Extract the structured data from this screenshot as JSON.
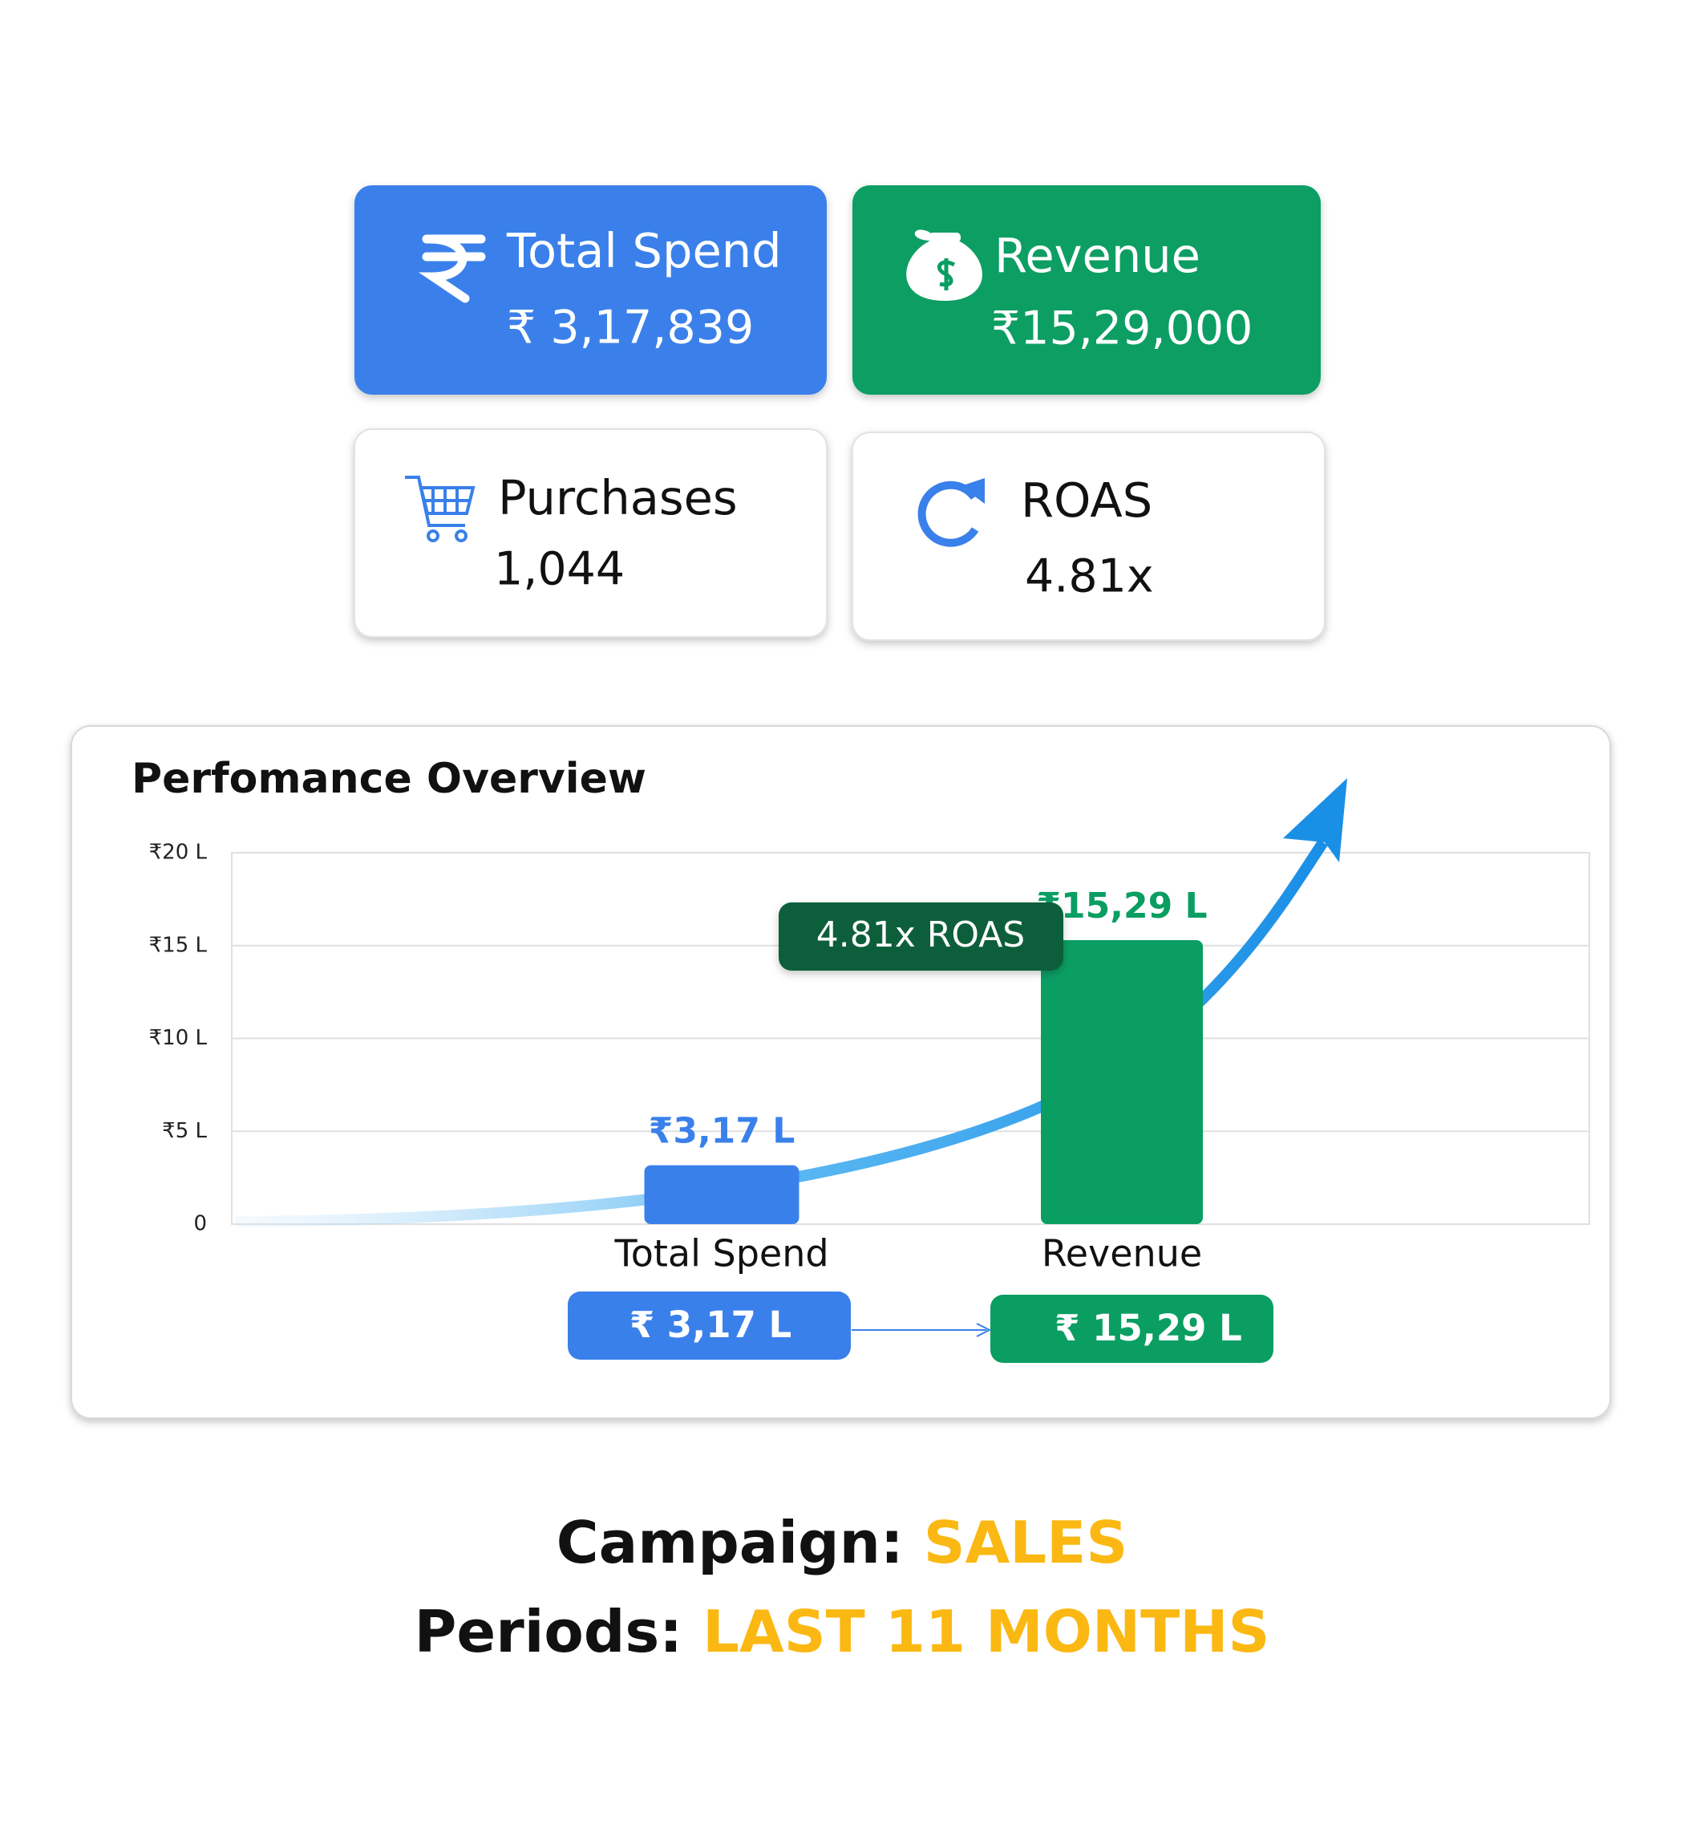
{
  "cards": [
    {
      "title": "Total Spend",
      "value": "₹ 3,17,839"
    },
    {
      "title": "Revenue",
      "value": "₹15,29,000"
    },
    {
      "title": "Purchases",
      "value": "1,044"
    },
    {
      "title": "ROAS",
      "value": "4.81x"
    }
  ],
  "chart_data": {
    "type": "bar",
    "title": "Perfomance Overview",
    "categories": [
      "Total Spend",
      "Revenue"
    ],
    "values": [
      3.17,
      15.29
    ],
    "value_labels": [
      "₹3,17 L",
      "₹15,29 L"
    ],
    "colors": [
      "#3a80ea",
      "#0a9e63"
    ],
    "ylim": [
      0,
      20
    ],
    "yticks": [
      0,
      {
        "value": 5,
        "label": "₹5 L"
      },
      {
        "value": 10,
        "label": "₹10 L"
      },
      {
        "value": 15,
        "label": "₹15 L"
      },
      {
        "value": 20,
        "label": "₹20 L"
      }
    ],
    "grid": true,
    "annotations": [
      "4.81x ROAS"
    ],
    "summary": [
      "₹ 3,17 L",
      "₹ 15,29 L"
    ]
  },
  "footer": [
    {
      "label": "Campaign:",
      "value": "SALES"
    },
    {
      "label": "Periods:",
      "value": "LAST 11 MONTHS"
    }
  ]
}
